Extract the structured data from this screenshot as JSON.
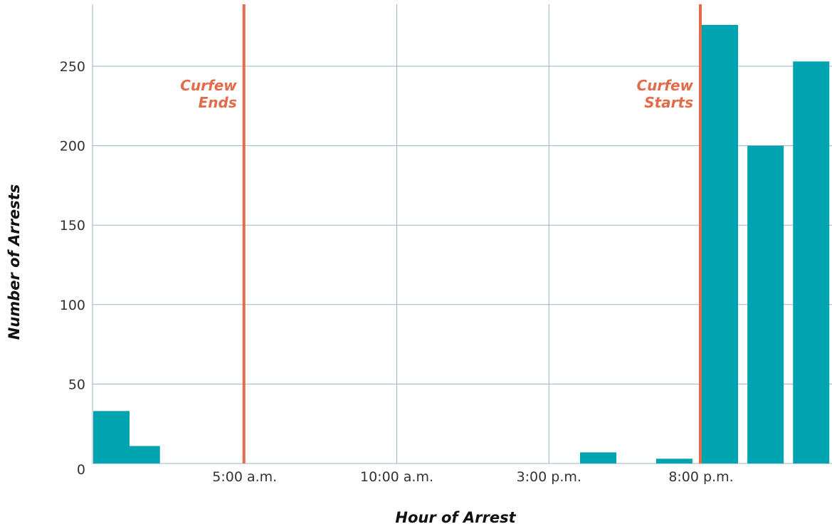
{
  "chart_data": {
    "type": "bar",
    "title": "",
    "xlabel": "Hour of Arrest",
    "ylabel": "Number of Arrests",
    "x_tick_labels": [
      "5:00 a.m.",
      "10:00 a.m.",
      "3:00 p.m.",
      "8:00 p.m."
    ],
    "y_tick_labels": [
      "0",
      "50",
      "100",
      "150",
      "200",
      "250"
    ],
    "ylim": [
      0,
      285
    ],
    "grid": true,
    "bars": [
      {
        "hour": "0:00",
        "value": 33
      },
      {
        "hour": "1:00",
        "value": 11
      },
      {
        "hour": "16:00",
        "value": 7
      },
      {
        "hour": "18:30",
        "value": 3
      },
      {
        "hour": "20:00",
        "value": 276
      },
      {
        "hour": "21:30",
        "value": 200
      },
      {
        "hour": "23:00",
        "value": 253
      }
    ],
    "annotations": [
      {
        "label_lines": [
          "Curfew",
          "Ends"
        ],
        "hour": "5:00"
      },
      {
        "label_lines": [
          "Curfew",
          "Starts"
        ],
        "hour": "20:00"
      }
    ],
    "colors": {
      "bar": "#00a3b0",
      "curfew_line": "#e36b4a",
      "grid": "#9db3c4"
    }
  }
}
